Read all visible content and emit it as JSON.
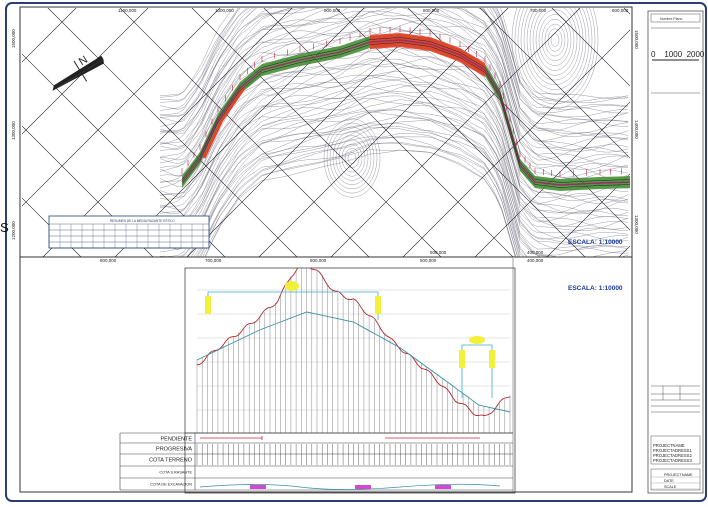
{
  "plan": {
    "grid_labels_top": [
      "1100,000",
      "1000,000",
      "900,000",
      "800,000",
      "700,000",
      "600,000"
    ],
    "grid_labels_left": [
      "1500,000",
      "1300,000",
      "1200,000"
    ],
    "grid_labels_right": [
      "1500,000",
      "1400,000",
      "1300,000"
    ],
    "grid_labels_bottom": [
      "500,000",
      "400,000"
    ],
    "scale_label": "ESCALA: 1:10000",
    "north_label": "N",
    "margin_label": "S",
    "table_title": "RESUMEN DE LA MEDIA RAZANTE ESTILO"
  },
  "profile": {
    "x_labels": [
      "600,000",
      "700,000",
      "800,000",
      "500,000",
      "400,000"
    ],
    "scale_label": "ESCALA: 1:10000",
    "row_labels": [
      "PENDIENTE",
      "PROGRESIVA",
      "COTA TERRENO",
      "COTA S.RASANTE",
      "COTA DE EXCAVACION"
    ]
  },
  "title_block": {
    "header": "Nombre Plano",
    "scale_text": "0    1000  2000",
    "project_lines": [
      "PROJECTNAME",
      "PROJECTADRESS1",
      "PROJECTADRESS2",
      "PROJECTADRESS3"
    ],
    "stamp_lines": [
      "PROJECTNAME",
      "DATE",
      "SCALE"
    ]
  },
  "colors": {
    "road_fill_cut": "#3d8a2b",
    "road_fill_fill": "#e8402a",
    "road_center": "#9a2a6b",
    "contour": "#5a5a6a",
    "grid": "#1a1a2a",
    "border": "#2b3f77"
  }
}
